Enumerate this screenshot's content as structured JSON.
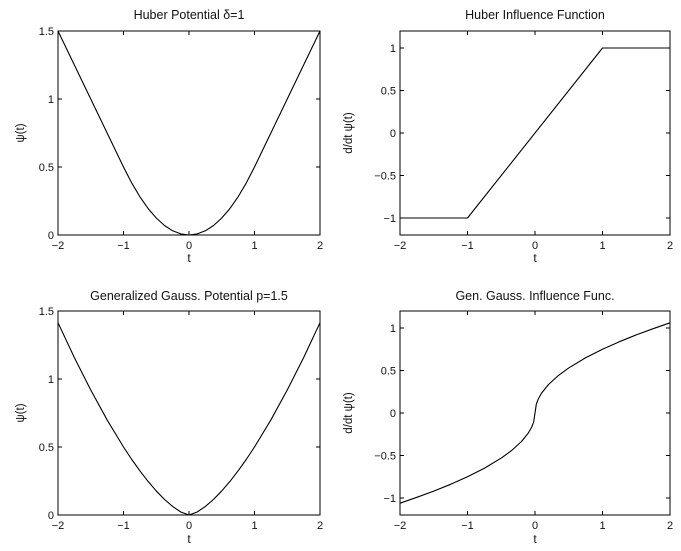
{
  "chart_data": [
    {
      "id": "huber-potential",
      "type": "line",
      "title": "Huber Potential δ=1",
      "xlabel": "t",
      "ylabel": "ψ(t)",
      "xlim": [
        -2,
        2
      ],
      "ylim": [
        0,
        1.5
      ],
      "xticks": [
        -2,
        -1,
        0,
        1,
        2
      ],
      "yticks": [
        0,
        0.5,
        1,
        1.5
      ],
      "grid": false,
      "series": [
        {
          "color": "#000000",
          "x": [
            -2,
            -1.75,
            -1.5,
            -1.25,
            -1,
            -0.875,
            -0.75,
            -0.625,
            -0.5,
            -0.375,
            -0.25,
            -0.125,
            0,
            0.125,
            0.25,
            0.375,
            0.5,
            0.625,
            0.75,
            0.875,
            1,
            1.25,
            1.5,
            1.75,
            2
          ],
          "y": [
            1.5,
            1.25,
            1.0,
            0.75,
            0.5,
            0.383,
            0.281,
            0.195,
            0.125,
            0.07,
            0.031,
            0.008,
            0,
            0.008,
            0.031,
            0.07,
            0.125,
            0.195,
            0.281,
            0.383,
            0.5,
            0.75,
            1.0,
            1.25,
            1.5
          ]
        }
      ]
    },
    {
      "id": "huber-influence",
      "type": "line",
      "title": "Huber Influence Function",
      "xlabel": "t",
      "ylabel": "d/dt ψ(t)",
      "xlim": [
        -2,
        2
      ],
      "ylim": [
        -1.2,
        1.2
      ],
      "xticks": [
        -2,
        -1,
        0,
        1,
        2
      ],
      "yticks": [
        -1,
        -0.5,
        0,
        0.5,
        1
      ],
      "grid": false,
      "series": [
        {
          "color": "#000000",
          "x": [
            -2,
            -1,
            1,
            2
          ],
          "y": [
            -1,
            -1,
            1,
            1
          ]
        }
      ]
    },
    {
      "id": "gen-gauss-potential",
      "type": "line",
      "title": "Generalized Gauss. Potential p=1.5",
      "xlabel": "t",
      "ylabel": "ψ(t)",
      "xlim": [
        -2,
        2
      ],
      "ylim": [
        0,
        1.5
      ],
      "xticks": [
        -2,
        -1,
        0,
        1,
        2
      ],
      "yticks": [
        0,
        0.5,
        1,
        1.5
      ],
      "grid": false,
      "series": [
        {
          "color": "#000000",
          "x": [
            -2,
            -1.75,
            -1.5,
            -1.25,
            -1,
            -0.875,
            -0.75,
            -0.625,
            -0.5,
            -0.375,
            -0.25,
            -0.125,
            0,
            0.125,
            0.25,
            0.375,
            0.5,
            0.625,
            0.75,
            0.875,
            1,
            1.25,
            1.5,
            1.75,
            2
          ],
          "y": [
            1.414,
            1.157,
            0.919,
            0.699,
            0.5,
            0.409,
            0.325,
            0.247,
            0.177,
            0.115,
            0.063,
            0.022,
            0,
            0.022,
            0.063,
            0.115,
            0.177,
            0.247,
            0.325,
            0.409,
            0.5,
            0.699,
            0.919,
            1.157,
            1.414
          ]
        }
      ]
    },
    {
      "id": "gen-gauss-influence",
      "type": "line",
      "title": "Gen. Gauss. Influence Func.",
      "xlabel": "t",
      "ylabel": "d/dt ψ(t)",
      "xlim": [
        -2,
        2
      ],
      "ylim": [
        -1.2,
        1.2
      ],
      "xticks": [
        -2,
        -1,
        0,
        1,
        2
      ],
      "yticks": [
        -1,
        -0.5,
        0,
        0.5,
        1
      ],
      "grid": false,
      "series": [
        {
          "color": "#000000",
          "x": [
            -2,
            -1.75,
            -1.5,
            -1.25,
            -1,
            -0.75,
            -0.5,
            -0.35,
            -0.2,
            -0.1,
            -0.05,
            -0.02,
            0,
            0.02,
            0.05,
            0.1,
            0.2,
            0.35,
            0.5,
            0.75,
            1,
            1.25,
            1.5,
            1.75,
            2
          ],
          "y": [
            -1.061,
            -0.992,
            -0.919,
            -0.839,
            -0.75,
            -0.65,
            -0.53,
            -0.444,
            -0.335,
            -0.237,
            -0.168,
            -0.106,
            0,
            0.106,
            0.168,
            0.237,
            0.335,
            0.444,
            0.53,
            0.65,
            0.75,
            0.839,
            0.919,
            0.992,
            1.061
          ]
        }
      ]
    }
  ]
}
